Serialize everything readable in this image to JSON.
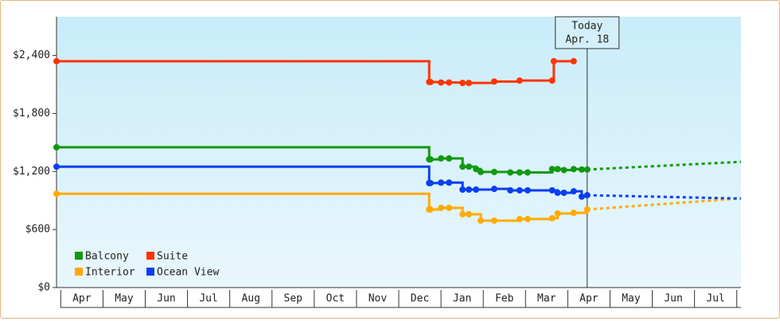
{
  "chart_data": {
    "type": "step-line",
    "categories": [
      "Apr",
      "May",
      "Jun",
      "Jul",
      "Aug",
      "Sep",
      "Oct",
      "Nov",
      "Dec",
      "Jan",
      "Feb",
      "Mar",
      "Apr",
      "May",
      "Jun",
      "Jul"
    ],
    "xlim": [
      -0.1,
      16.1
    ],
    "ylim": [
      0,
      2800
    ],
    "yticks": [
      {
        "value": 0,
        "label": "$0"
      },
      {
        "value": 600,
        "label": "$600"
      },
      {
        "value": 1200,
        "label": "$1,200"
      },
      {
        "value": 1800,
        "label": "$1,800"
      },
      {
        "value": 2400,
        "label": "$2,400"
      }
    ],
    "annotation": {
      "lines": [
        "Today",
        "Apr. 18"
      ],
      "x": 12.46
    },
    "legend": "lower left",
    "series": [
      {
        "name": "Balcony",
        "color": "#119911",
        "x": [
          -0.1,
          8.72,
          8.75,
          9.0,
          9.19,
          9.51,
          9.66,
          9.83,
          9.94,
          10.26,
          10.64,
          10.86,
          11.05,
          11.63,
          11.76,
          11.91,
          12.14,
          12.33,
          12.46
        ],
        "values": [
          1450,
          1325,
          1325,
          1335,
          1335,
          1250,
          1250,
          1225,
          1195,
          1195,
          1190,
          1190,
          1190,
          1225,
          1225,
          1215,
          1225,
          1220,
          1220
        ],
        "projection": {
          "x": [
            12.46,
            16.1
          ],
          "values": [
            1220,
            1300
          ]
        }
      },
      {
        "name": "Suite",
        "color": "#ff3300",
        "x": [
          -0.1,
          8.72,
          8.75,
          9.0,
          9.19,
          9.51,
          9.66,
          10.26,
          10.86,
          11.63,
          11.67,
          12.14
        ],
        "values": [
          2340,
          2125,
          2125,
          2120,
          2120,
          2115,
          2115,
          2130,
          2140,
          2140,
          2340,
          2340
        ]
      },
      {
        "name": "Interior",
        "color": "#ffaa00",
        "x": [
          -0.1,
          8.72,
          8.75,
          9.0,
          9.19,
          9.51,
          9.66,
          9.94,
          10.26,
          10.86,
          11.05,
          11.63,
          11.76,
          12.14,
          12.46
        ],
        "values": [
          970,
          807,
          807,
          824,
          824,
          758,
          758,
          692,
          692,
          708,
          708,
          716,
          766,
          772,
          807
        ],
        "projection": {
          "x": [
            12.46,
            16.1
          ],
          "values": [
            807,
            922
          ]
        }
      },
      {
        "name": "Ocean View",
        "color": "#0a3ef0",
        "x": [
          -0.1,
          8.72,
          8.75,
          9.0,
          9.19,
          9.51,
          9.66,
          9.83,
          10.26,
          10.64,
          10.86,
          11.05,
          11.63,
          11.76,
          11.91,
          12.14,
          12.33,
          12.46
        ],
        "values": [
          1250,
          1080,
          1080,
          1085,
          1085,
          1013,
          1013,
          1013,
          1020,
          1005,
          1005,
          1005,
          1005,
          980,
          980,
          995,
          940,
          955
        ],
        "projection": {
          "x": [
            12.46,
            16.1
          ],
          "values": [
            955,
            920
          ]
        }
      }
    ]
  }
}
